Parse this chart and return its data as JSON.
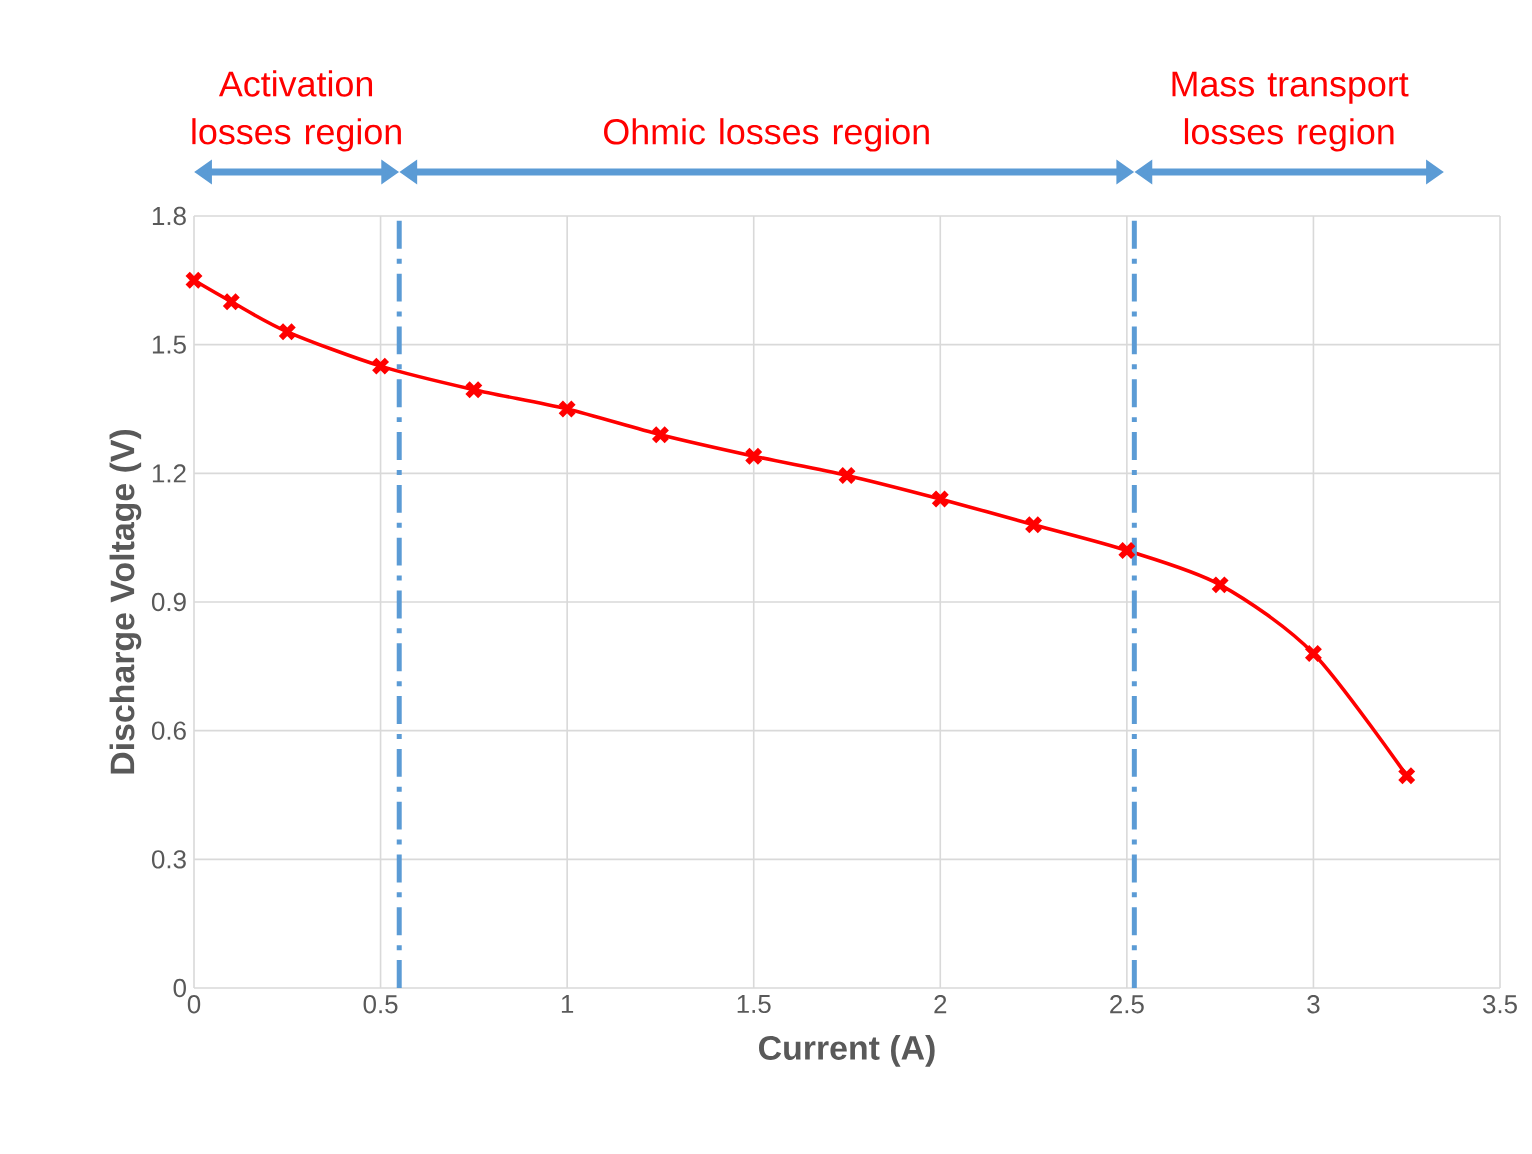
{
  "chart_data": {
    "type": "line",
    "xlabel": "Current (A)",
    "ylabel": "Discharge Voltage (V)",
    "x": [
      0,
      0.1,
      0.25,
      0.5,
      0.75,
      1,
      1.25,
      1.5,
      1.75,
      2,
      2.25,
      2.5,
      2.75,
      3,
      3.25
    ],
    "series": [
      {
        "color": "#ff0000",
        "values": [
          1.65,
          1.6,
          1.53,
          1.45,
          1.395,
          1.35,
          1.29,
          1.24,
          1.195,
          1.14,
          1.08,
          1.02,
          0.94,
          0.78,
          0.495
        ]
      }
    ],
    "xlim": [
      0,
      3.5
    ],
    "xticks": [
      0,
      0.5,
      1,
      1.5,
      2,
      2.5,
      3,
      3.5
    ],
    "ylim": [
      0,
      1.8
    ],
    "yticks": [
      0,
      0.3,
      0.6,
      0.9,
      1.2,
      1.5,
      1.8
    ],
    "grid": true,
    "marker": "cross",
    "line_style": "solid",
    "ref_lines": [
      {
        "axis": "x",
        "value": 0.55,
        "color": "#5b9bd5",
        "line_style": "dashdot"
      },
      {
        "axis": "x",
        "value": 2.52,
        "color": "#5b9bd5",
        "line_style": "dashdot"
      }
    ],
    "annotations": [
      "Activation losses region",
      "Ohmic  losses region",
      "Mass transport losses region"
    ]
  }
}
